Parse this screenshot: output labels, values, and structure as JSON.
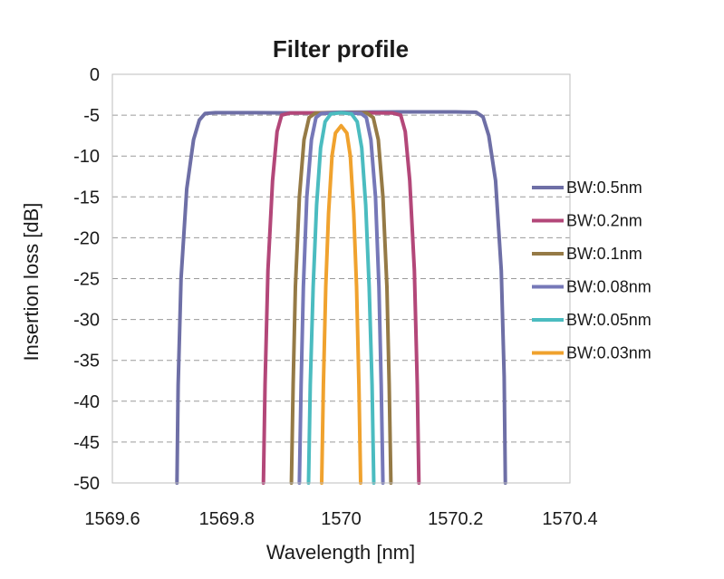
{
  "chart_data": {
    "type": "line",
    "title": "Filter profile",
    "xlabel": "Wavelength [nm]",
    "ylabel": "Insertion loss [dB]",
    "xlim": [
      1569.6,
      1570.4
    ],
    "ylim": [
      -50,
      0
    ],
    "x_ticks": [
      1569.6,
      1569.8,
      1570,
      1570.2,
      1570.4
    ],
    "x_tick_labels": [
      "1569.6",
      "1569.8",
      "1570",
      "1570.2",
      "1570.4"
    ],
    "y_ticks": [
      0,
      -5,
      -10,
      -15,
      -20,
      -25,
      -30,
      -35,
      -40,
      -45,
      -50
    ],
    "y_tick_labels": [
      "0",
      "-5",
      "-10",
      "-15",
      "-20",
      "-25",
      "-30",
      "-35",
      "-40",
      "-45",
      "-50"
    ],
    "grid": "horizontal dashed",
    "legend_position": "right",
    "series": [
      {
        "name": "BW:0.5nm",
        "color": "#6e6fa6",
        "points": [
          [
            1569.713,
            -50
          ],
          [
            1569.715,
            -38
          ],
          [
            1569.72,
            -25
          ],
          [
            1569.73,
            -14
          ],
          [
            1569.742,
            -8
          ],
          [
            1569.752,
            -5.6
          ],
          [
            1569.762,
            -4.8
          ],
          [
            1569.78,
            -4.7
          ],
          [
            1569.85,
            -4.7
          ],
          [
            1569.95,
            -4.75
          ],
          [
            1570.0,
            -4.65
          ],
          [
            1570.1,
            -4.6
          ],
          [
            1570.2,
            -4.6
          ],
          [
            1570.236,
            -4.65
          ],
          [
            1570.248,
            -5.2
          ],
          [
            1570.258,
            -7.5
          ],
          [
            1570.27,
            -13
          ],
          [
            1570.28,
            -24
          ],
          [
            1570.285,
            -37
          ],
          [
            1570.287,
            -50
          ]
        ]
      },
      {
        "name": "BW:0.2nm",
        "color": "#b34779",
        "points": [
          [
            1569.864,
            -50
          ],
          [
            1569.867,
            -38
          ],
          [
            1569.872,
            -24
          ],
          [
            1569.88,
            -13
          ],
          [
            1569.888,
            -7
          ],
          [
            1569.896,
            -5.0
          ],
          [
            1569.91,
            -4.75
          ],
          [
            1570.0,
            -4.7
          ],
          [
            1570.09,
            -4.75
          ],
          [
            1570.104,
            -5.0
          ],
          [
            1570.112,
            -7
          ],
          [
            1570.12,
            -13
          ],
          [
            1570.128,
            -24
          ],
          [
            1570.133,
            -38
          ],
          [
            1570.136,
            -50
          ]
        ]
      },
      {
        "name": "BW:0.1nm",
        "color": "#957a46",
        "points": [
          [
            1569.913,
            -50
          ],
          [
            1569.916,
            -38
          ],
          [
            1569.92,
            -26
          ],
          [
            1569.927,
            -15
          ],
          [
            1569.935,
            -8
          ],
          [
            1569.944,
            -5.3
          ],
          [
            1569.955,
            -4.75
          ],
          [
            1570.0,
            -4.7
          ],
          [
            1570.045,
            -4.75
          ],
          [
            1570.056,
            -5.3
          ],
          [
            1570.065,
            -8
          ],
          [
            1570.073,
            -15
          ],
          [
            1570.08,
            -26
          ],
          [
            1570.084,
            -38
          ],
          [
            1570.087,
            -50
          ]
        ]
      },
      {
        "name": "BW:0.08nm",
        "color": "#7678b8",
        "points": [
          [
            1569.927,
            -50
          ],
          [
            1569.93,
            -38
          ],
          [
            1569.934,
            -26
          ],
          [
            1569.94,
            -15
          ],
          [
            1569.948,
            -8
          ],
          [
            1569.956,
            -5.3
          ],
          [
            1569.965,
            -4.8
          ],
          [
            1570.0,
            -4.7
          ],
          [
            1570.035,
            -4.8
          ],
          [
            1570.044,
            -5.3
          ],
          [
            1570.052,
            -8
          ],
          [
            1570.06,
            -15
          ],
          [
            1570.066,
            -26
          ],
          [
            1570.07,
            -38
          ],
          [
            1570.073,
            -50
          ]
        ]
      },
      {
        "name": "BW:0.05nm",
        "color": "#4bbcc0",
        "points": [
          [
            1569.943,
            -50
          ],
          [
            1569.946,
            -38
          ],
          [
            1569.951,
            -26
          ],
          [
            1569.957,
            -16
          ],
          [
            1569.964,
            -9
          ],
          [
            1569.972,
            -5.8
          ],
          [
            1569.982,
            -4.85
          ],
          [
            1570.0,
            -4.7
          ],
          [
            1570.018,
            -4.85
          ],
          [
            1570.028,
            -5.8
          ],
          [
            1570.036,
            -9
          ],
          [
            1570.043,
            -16
          ],
          [
            1570.049,
            -26
          ],
          [
            1570.054,
            -38
          ],
          [
            1570.057,
            -50
          ]
        ]
      },
      {
        "name": "BW:0.03nm",
        "color": "#f0a22e",
        "points": [
          [
            1569.966,
            -50
          ],
          [
            1569.969,
            -38
          ],
          [
            1569.973,
            -26
          ],
          [
            1569.978,
            -17
          ],
          [
            1569.984,
            -10
          ],
          [
            1569.99,
            -7.2
          ],
          [
            1570.0,
            -6.3
          ],
          [
            1570.01,
            -7.2
          ],
          [
            1570.016,
            -10
          ],
          [
            1570.022,
            -17
          ],
          [
            1570.027,
            -26
          ],
          [
            1570.031,
            -38
          ],
          [
            1570.034,
            -50
          ]
        ]
      }
    ]
  }
}
